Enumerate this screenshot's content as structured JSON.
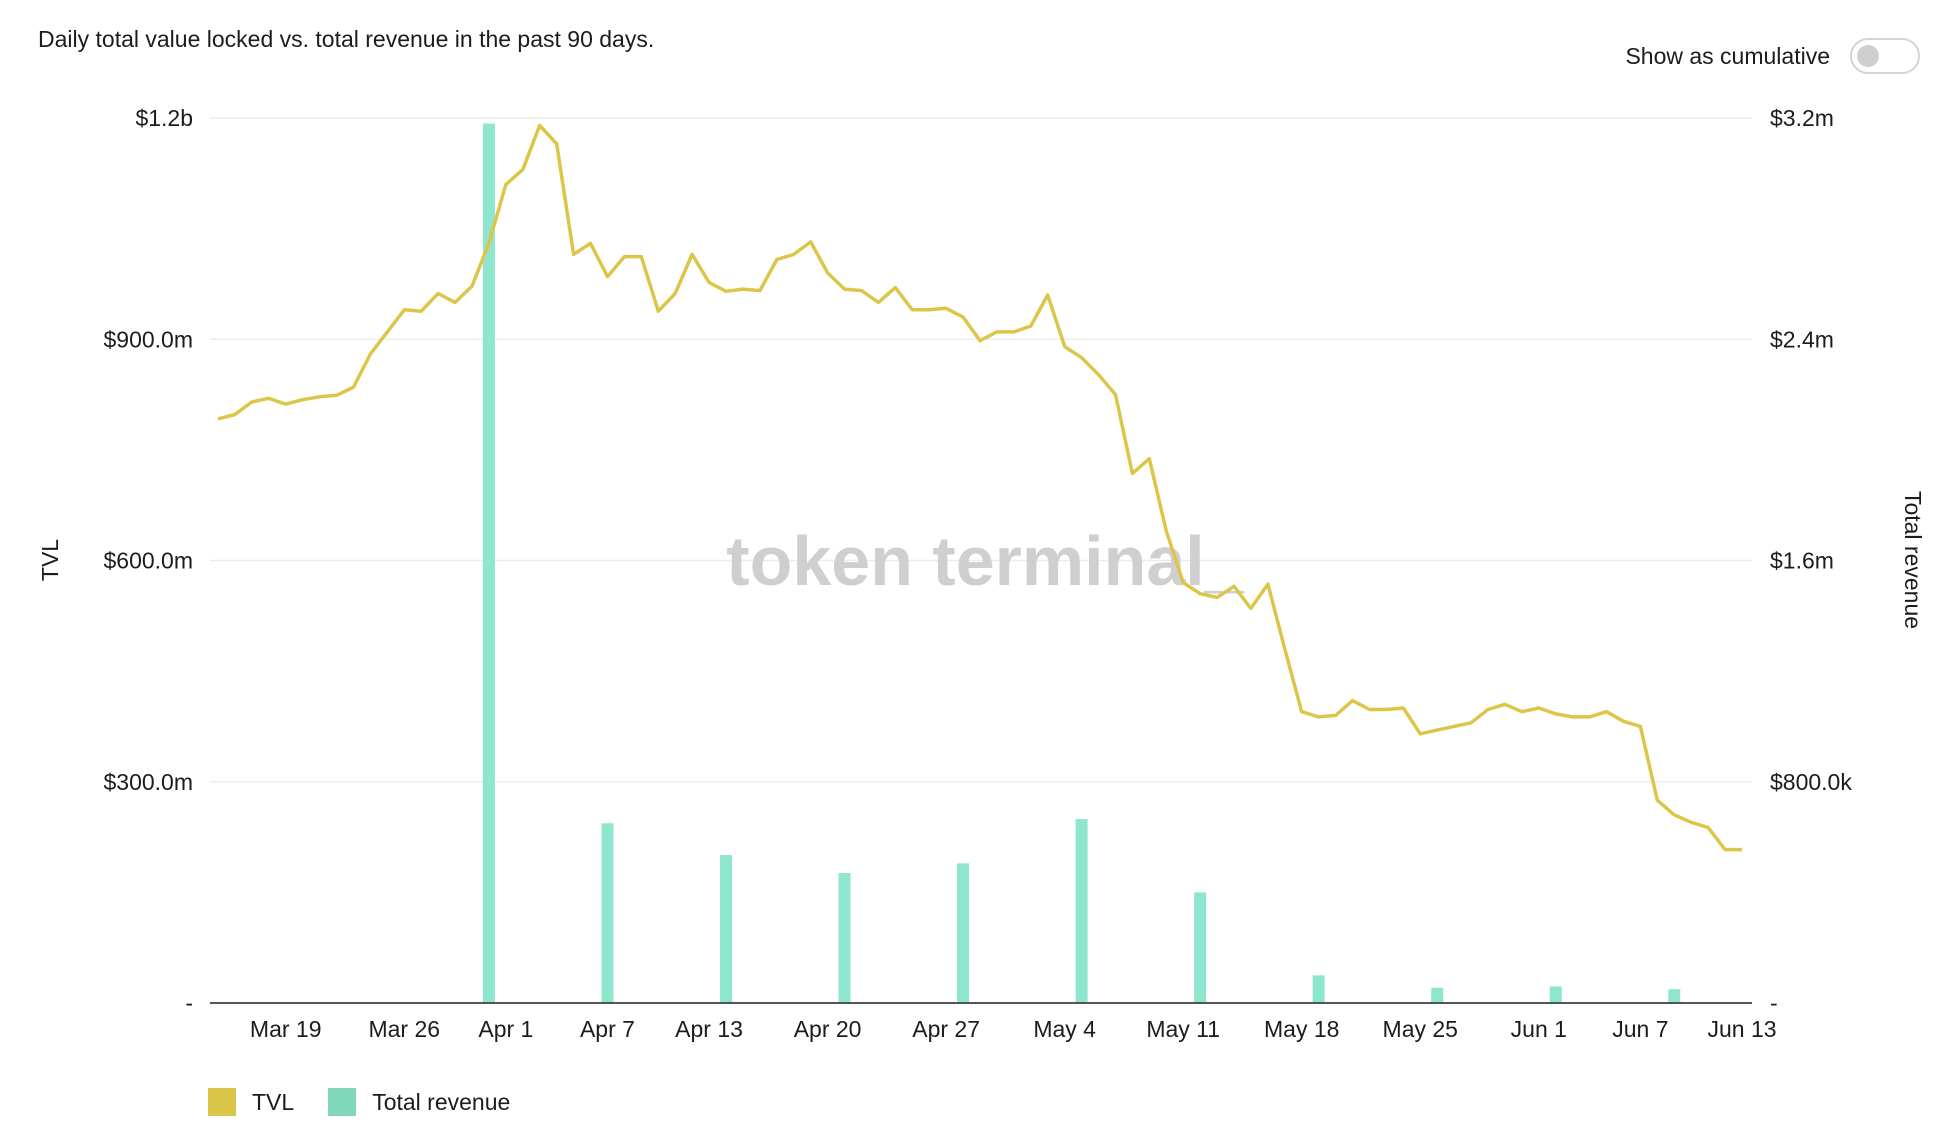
{
  "header": {
    "subtitle": "Daily total value locked vs. total revenue in the past 90 days.",
    "toggle_label": "Show as cumulative",
    "toggle_on": false
  },
  "legend": {
    "tvl_label": "TVL",
    "revenue_label": "Total revenue"
  },
  "watermark": "token terminal_",
  "colors": {
    "tvl": "#dcc64a",
    "revenue": "#8fe6cf",
    "revenue_legend": "#7fd6b8",
    "grid": "#ececec",
    "axis": "#555555",
    "watermark": "#cfcfcf"
  },
  "chart_data": {
    "type": "bar+line",
    "ylabel_left": "TVL",
    "ylabel_right": "Total revenue",
    "ylim_left": [
      0,
      1200000000
    ],
    "ylim_right": [
      0,
      3200000
    ],
    "left_ticks": [
      {
        "value": 0,
        "label": "-"
      },
      {
        "value": 300000000,
        "label": "$300.0m"
      },
      {
        "value": 600000000,
        "label": "$600.0m"
      },
      {
        "value": 900000000,
        "label": "$900.0m"
      },
      {
        "value": 1200000000,
        "label": "$1.2b"
      }
    ],
    "right_ticks": [
      {
        "value": 0,
        "label": "-"
      },
      {
        "value": 800000,
        "label": "$800.0k"
      },
      {
        "value": 1600000,
        "label": "$1.6m"
      },
      {
        "value": 2400000,
        "label": "$2.4m"
      },
      {
        "value": 3200000,
        "label": "$3.2m"
      }
    ],
    "x_range": [
      "2022-03-15",
      "2022-06-13"
    ],
    "x_ticks": [
      {
        "date": "2022-03-19",
        "label": "Mar 19"
      },
      {
        "date": "2022-03-26",
        "label": "Mar 26"
      },
      {
        "date": "2022-04-01",
        "label": "Apr 1"
      },
      {
        "date": "2022-04-07",
        "label": "Apr 7"
      },
      {
        "date": "2022-04-13",
        "label": "Apr 13"
      },
      {
        "date": "2022-04-20",
        "label": "Apr 20"
      },
      {
        "date": "2022-04-27",
        "label": "Apr 27"
      },
      {
        "date": "2022-05-04",
        "label": "May 4"
      },
      {
        "date": "2022-05-11",
        "label": "May 11"
      },
      {
        "date": "2022-05-18",
        "label": "May 18"
      },
      {
        "date": "2022-05-25",
        "label": "May 25"
      },
      {
        "date": "2022-06-01",
        "label": "Jun 1"
      },
      {
        "date": "2022-06-07",
        "label": "Jun 7"
      },
      {
        "date": "2022-06-13",
        "label": "Jun 13"
      }
    ],
    "series": [
      {
        "name": "TVL",
        "kind": "line",
        "axis": "left",
        "x": [
          "2022-03-15",
          "2022-03-16",
          "2022-03-17",
          "2022-03-18",
          "2022-03-19",
          "2022-03-20",
          "2022-03-21",
          "2022-03-22",
          "2022-03-23",
          "2022-03-24",
          "2022-03-25",
          "2022-03-26",
          "2022-03-27",
          "2022-03-28",
          "2022-03-29",
          "2022-03-30",
          "2022-03-31",
          "2022-04-01",
          "2022-04-02",
          "2022-04-03",
          "2022-04-04",
          "2022-04-05",
          "2022-04-06",
          "2022-04-07",
          "2022-04-08",
          "2022-04-09",
          "2022-04-10",
          "2022-04-11",
          "2022-04-12",
          "2022-04-13",
          "2022-04-14",
          "2022-04-15",
          "2022-04-16",
          "2022-04-17",
          "2022-04-18",
          "2022-04-19",
          "2022-04-20",
          "2022-04-21",
          "2022-04-22",
          "2022-04-23",
          "2022-04-24",
          "2022-04-25",
          "2022-04-26",
          "2022-04-27",
          "2022-04-28",
          "2022-04-29",
          "2022-04-30",
          "2022-05-01",
          "2022-05-02",
          "2022-05-03",
          "2022-05-04",
          "2022-05-05",
          "2022-05-06",
          "2022-05-07",
          "2022-05-08",
          "2022-05-09",
          "2022-05-10",
          "2022-05-11",
          "2022-05-12",
          "2022-05-13",
          "2022-05-14",
          "2022-05-15",
          "2022-05-16",
          "2022-05-17",
          "2022-05-18",
          "2022-05-19",
          "2022-05-20",
          "2022-05-21",
          "2022-05-22",
          "2022-05-23",
          "2022-05-24",
          "2022-05-25",
          "2022-05-26",
          "2022-05-27",
          "2022-05-28",
          "2022-05-29",
          "2022-05-30",
          "2022-05-31",
          "2022-06-01",
          "2022-06-02",
          "2022-06-03",
          "2022-06-04",
          "2022-06-05",
          "2022-06-06",
          "2022-06-07",
          "2022-06-08",
          "2022-06-09",
          "2022-06-10",
          "2022-06-11",
          "2022-06-12",
          "2022-06-13"
        ],
        "values": [
          792000000,
          798000000,
          815000000,
          820000000,
          812000000,
          818000000,
          822000000,
          824000000,
          835000000,
          880000000,
          910000000,
          940000000,
          938000000,
          962000000,
          950000000,
          972000000,
          1030000000,
          1110000000,
          1130000000,
          1190000000,
          1165000000,
          1015000000,
          1030000000,
          985000000,
          1012000000,
          1012000000,
          938000000,
          962000000,
          1015000000,
          977000000,
          965000000,
          968000000,
          966000000,
          1008000000,
          1015000000,
          1032000000,
          990000000,
          968000000,
          966000000,
          950000000,
          970000000,
          940000000,
          940000000,
          942000000,
          930000000,
          898000000,
          910000000,
          910000000,
          918000000,
          960000000,
          890000000,
          875000000,
          852000000,
          825000000,
          718000000,
          738000000,
          640000000,
          570000000,
          555000000,
          550000000,
          565000000,
          535000000,
          568000000,
          480000000,
          395000000,
          388000000,
          390000000,
          410000000,
          398000000,
          398000000,
          400000000,
          365000000,
          370000000,
          375000000,
          380000000,
          398000000,
          405000000,
          395000000,
          400000000,
          392000000,
          388000000,
          388000000,
          395000000,
          382000000,
          375000000,
          275000000,
          255000000,
          245000000,
          238000000,
          208000000,
          208000000
        ]
      },
      {
        "name": "Total revenue",
        "kind": "bar",
        "axis": "right",
        "x": [
          "2022-03-31",
          "2022-04-07",
          "2022-04-14",
          "2022-04-21",
          "2022-04-28",
          "2022-05-05",
          "2022-05-12",
          "2022-05-19",
          "2022-05-26",
          "2022-06-02",
          "2022-06-09"
        ],
        "values": [
          3180000,
          650000,
          535000,
          470000,
          505000,
          665000,
          400000,
          100000,
          55000,
          60000,
          50000
        ]
      }
    ]
  }
}
